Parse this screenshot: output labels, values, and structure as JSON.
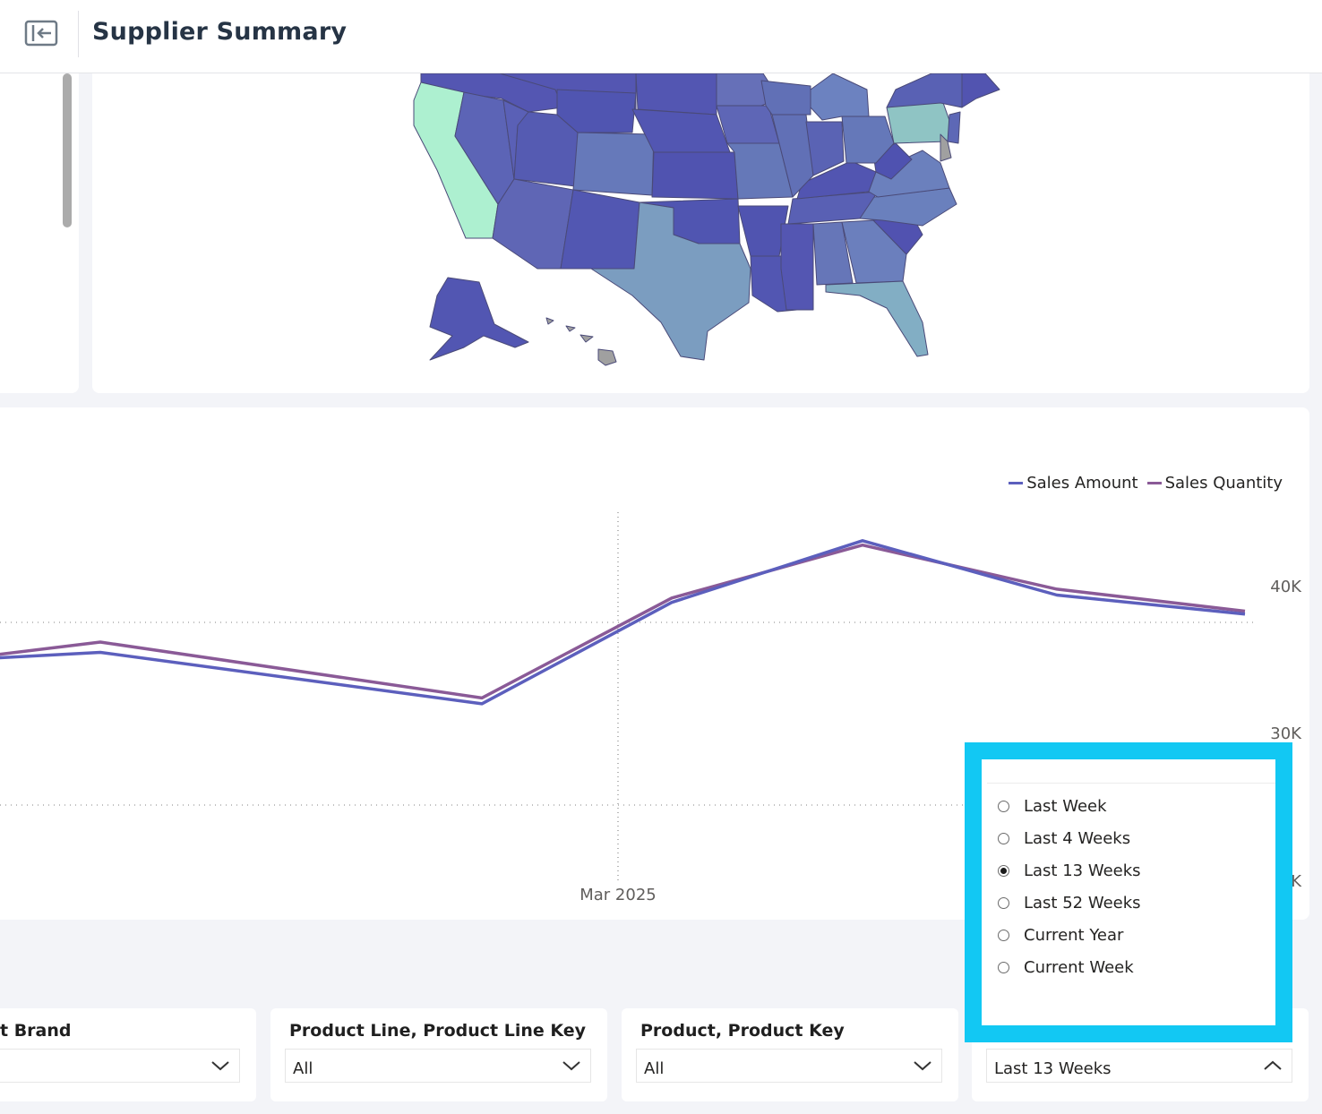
{
  "header": {
    "title": "Supplier Summary",
    "collapse_icon": "collapse-panel-icon"
  },
  "chart_data": {
    "type": "line",
    "legend_position": "top-right",
    "series": [
      {
        "name": "Sales Amount",
        "color": "#5c5fbd",
        "values": [
          35000,
          35400,
          31900,
          38800,
          43000,
          39300,
          38000
        ]
      },
      {
        "name": "Sales Quantity",
        "color": "#8a5a97",
        "values": [
          35200,
          36100,
          32300,
          39100,
          42700,
          39700,
          38200
        ]
      }
    ],
    "x_tick_labels": [
      "Mar 2025"
    ],
    "y_tick_labels": [
      "40K",
      "30K",
      "K"
    ],
    "y_ticks": [
      40000,
      30000,
      20000
    ],
    "grid": true
  },
  "filters": [
    {
      "label": "t Brand",
      "value": ""
    },
    {
      "label": "Product Line, Product Line Key",
      "value": "All"
    },
    {
      "label": "Product, Product Key",
      "value": "All"
    },
    {
      "label": "",
      "value": "Last 13 Weeks"
    }
  ],
  "period_dropdown": {
    "options": [
      {
        "label": "Last Week",
        "selected": false
      },
      {
        "label": "Last 4 Weeks",
        "selected": false
      },
      {
        "label": "Last 13 Weeks",
        "selected": true
      },
      {
        "label": "Last 52 Weeks",
        "selected": false
      },
      {
        "label": "Current Year",
        "selected": false
      },
      {
        "label": "Current Week",
        "selected": false
      }
    ],
    "highlight_color": "#12c8f3"
  },
  "map": {
    "colors": {
      "low": "#5255b0",
      "mid": "#7b9fc0",
      "high": "#aeeed0",
      "missing": "#a0a0a0"
    }
  }
}
